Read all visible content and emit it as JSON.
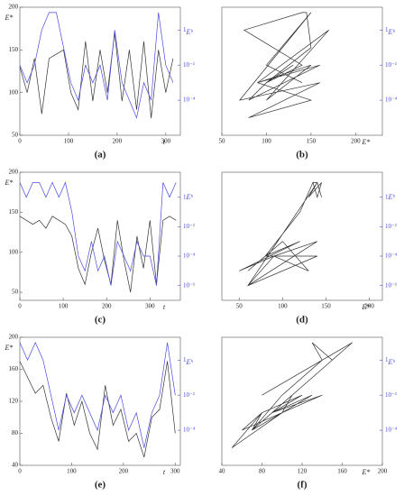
{
  "chart_data": [
    {
      "type": "line",
      "caption": "(a)",
      "xlabel": "t",
      "ylabel": "E*",
      "y2label": "Eᵇ",
      "x": [
        0,
        15,
        30,
        45,
        60,
        75,
        90,
        105,
        120,
        135,
        150,
        165,
        180,
        195,
        210,
        225,
        240,
        255,
        270,
        285,
        300,
        315
      ],
      "xlim": [
        0,
        330
      ],
      "xticks": [
        0,
        100,
        200,
        300
      ],
      "ylim": [
        50,
        200
      ],
      "yticks": [
        50,
        100,
        150,
        200
      ],
      "y2lim": [
        1e-06,
        20
      ],
      "y2log": true,
      "y2ticks": [
        {
          "value": 0.0001,
          "label": "10⁻⁴"
        },
        {
          "value": 0.01,
          "label": "10⁻²"
        },
        1
      ],
      "series": [
        {
          "color": "#333333",
          "values": [
            130,
            100,
            140,
            75,
            140,
            145,
            150,
            100,
            80,
            160,
            90,
            150,
            100,
            170,
            90,
            150,
            80,
            160,
            70,
            150,
            100,
            140
          ]
        },
        {
          "color": "#4a4ae0",
          "axis": "y2",
          "values": [
            0.01,
            0.001,
            0.01,
            1,
            10,
            10,
            0.1,
            0.001,
            0.0001,
            0.01,
            0.001,
            0.01,
            0.0001,
            1,
            0.001,
            0.0001,
            1e-05,
            0.001,
            0.0001,
            10,
            0.01,
            0.001
          ]
        }
      ]
    },
    {
      "type": "line",
      "caption": "(b)",
      "xlabel": "E*",
      "y2label": "Eᵇ",
      "x": [
        130,
        100,
        140,
        75,
        140,
        145,
        150,
        100,
        80,
        160,
        90,
        150,
        100,
        170,
        90,
        150,
        80,
        160,
        70,
        150,
        100,
        140
      ],
      "xlim": [
        50,
        230
      ],
      "xticks": [
        50,
        100,
        150,
        200
      ],
      "y2lim": [
        1e-06,
        20
      ],
      "y2log": true,
      "y2ticks": [
        {
          "value": 0.0001,
          "label": "10⁻⁴"
        },
        {
          "value": 0.01,
          "label": "10⁻²"
        },
        1
      ],
      "series": [
        {
          "color": "#333333",
          "axis": "y2",
          "values": [
            0.01,
            0.001,
            0.01,
            1,
            10,
            10,
            0.1,
            0.001,
            0.0001,
            0.01,
            0.001,
            0.01,
            0.0001,
            1,
            0.001,
            0.0001,
            1e-05,
            0.001,
            0.0001,
            10,
            0.01,
            0.001
          ]
        }
      ]
    },
    {
      "type": "line",
      "caption": "(c)",
      "xlabel": "t",
      "ylabel": "E*",
      "y2label": "Eᵇ",
      "x": [
        0,
        15,
        30,
        45,
        60,
        75,
        90,
        105,
        120,
        135,
        150,
        165,
        180,
        195,
        210,
        225,
        240,
        255,
        270,
        285,
        300,
        315,
        330,
        345,
        360
      ],
      "xlim": [
        0,
        370
      ],
      "xticks": [
        0,
        100,
        200,
        300
      ],
      "ylim": [
        40,
        200
      ],
      "yticks": [
        50,
        100,
        150,
        200
      ],
      "y2lim": [
        1e-07,
        50
      ],
      "y2log": true,
      "y2ticks": [
        {
          "value": 1e-06,
          "label": "10⁻⁶"
        },
        {
          "value": 0.0001,
          "label": "10⁻⁴"
        },
        {
          "value": 0.01,
          "label": "10⁻²"
        },
        1
      ],
      "series": [
        {
          "color": "#333333",
          "values": [
            145,
            140,
            135,
            140,
            130,
            145,
            140,
            135,
            120,
            80,
            60,
            100,
            130,
            90,
            60,
            140,
            90,
            50,
            120,
            80,
            140,
            60,
            140,
            145,
            140
          ]
        },
        {
          "color": "#4a4ae0",
          "axis": "y2",
          "values": [
            10,
            1,
            10,
            10,
            1,
            10,
            1,
            10,
            0.1,
            0.0001,
            1e-05,
            0.001,
            1e-05,
            0.0001,
            1e-06,
            0.001,
            0.0001,
            1e-05,
            0.001,
            0.0001,
            0.0001,
            1e-06,
            10,
            1,
            10
          ]
        }
      ]
    },
    {
      "type": "line",
      "caption": "(d)",
      "xlabel": "E*",
      "y2label": "Eᵇ",
      "x": [
        145,
        140,
        135,
        140,
        130,
        145,
        140,
        135,
        120,
        80,
        60,
        100,
        130,
        90,
        60,
        140,
        90,
        50,
        120,
        80,
        140,
        60,
        140,
        145,
        140
      ],
      "xlim": [
        30,
        215
      ],
      "xticks": [
        50,
        100,
        150,
        200
      ],
      "y2lim": [
        1e-07,
        50
      ],
      "y2log": true,
      "y2ticks": [
        {
          "value": 1e-06,
          "label": "10⁻⁶"
        },
        {
          "value": 0.0001,
          "label": "10⁻⁴"
        },
        {
          "value": 0.01,
          "label": "10⁻²"
        },
        1
      ],
      "series": [
        {
          "color": "#333333",
          "axis": "y2",
          "values": [
            10,
            1,
            10,
            10,
            1,
            10,
            1,
            10,
            0.1,
            0.0001,
            1e-05,
            0.001,
            1e-05,
            0.0001,
            1e-06,
            0.001,
            0.0001,
            1e-05,
            0.001,
            0.0001,
            0.0001,
            1e-06,
            10,
            1,
            10
          ]
        }
      ]
    },
    {
      "type": "line",
      "caption": "(e)",
      "xlabel": "t",
      "ylabel": "E*",
      "y2label": "Eᵇ",
      "x": [
        0,
        15,
        30,
        45,
        60,
        75,
        90,
        105,
        120,
        135,
        150,
        165,
        180,
        195,
        210,
        225,
        240,
        255,
        270,
        285,
        300
      ],
      "xlim": [
        0,
        310
      ],
      "xticks": [
        0,
        100,
        200,
        300
      ],
      "ylim": [
        40,
        200
      ],
      "yticks": [
        40,
        80,
        120,
        160,
        200
      ],
      "y2lim": [
        1e-06,
        20
      ],
      "y2log": true,
      "y2ticks": [
        {
          "value": 0.0001,
          "label": "10⁻⁴"
        },
        {
          "value": 0.01,
          "label": "10⁻²"
        },
        1
      ],
      "series": [
        {
          "color": "#333333",
          "values": [
            170,
            150,
            130,
            140,
            100,
            70,
            130,
            90,
            120,
            80,
            60,
            140,
            90,
            110,
            70,
            80,
            50,
            100,
            110,
            170,
            80
          ]
        },
        {
          "color": "#4a4ae0",
          "axis": "y2",
          "values": [
            10,
            1,
            10,
            1,
            0.01,
            0.0001,
            0.01,
            0.001,
            0.01,
            0.001,
            0.0001,
            0.01,
            0.001,
            0.01,
            0.0001,
            0.001,
            1e-05,
            0.001,
            0.01,
            10,
            0.01
          ]
        }
      ]
    },
    {
      "type": "line",
      "caption": "(f)",
      "xlabel": "E*",
      "y2label": "Eᵇ",
      "x": [
        170,
        150,
        130,
        140,
        100,
        70,
        130,
        90,
        120,
        80,
        60,
        140,
        90,
        110,
        70,
        80,
        50,
        100,
        110,
        170,
        80
      ],
      "xlim": [
        40,
        200
      ],
      "xticks": [
        40,
        80,
        120,
        160,
        200
      ],
      "y2lim": [
        1e-06,
        20
      ],
      "y2log": true,
      "y2ticks": [
        {
          "value": 0.0001,
          "label": "10⁻⁴"
        },
        {
          "value": 0.01,
          "label": "10⁻²"
        },
        1
      ],
      "series": [
        {
          "color": "#333333",
          "axis": "y2",
          "values": [
            10,
            1,
            10,
            1,
            0.01,
            0.0001,
            0.01,
            0.001,
            0.01,
            0.001,
            0.0001,
            0.01,
            0.001,
            0.01,
            0.0001,
            0.001,
            1e-05,
            0.001,
            0.01,
            10,
            0.01
          ]
        }
      ]
    }
  ]
}
